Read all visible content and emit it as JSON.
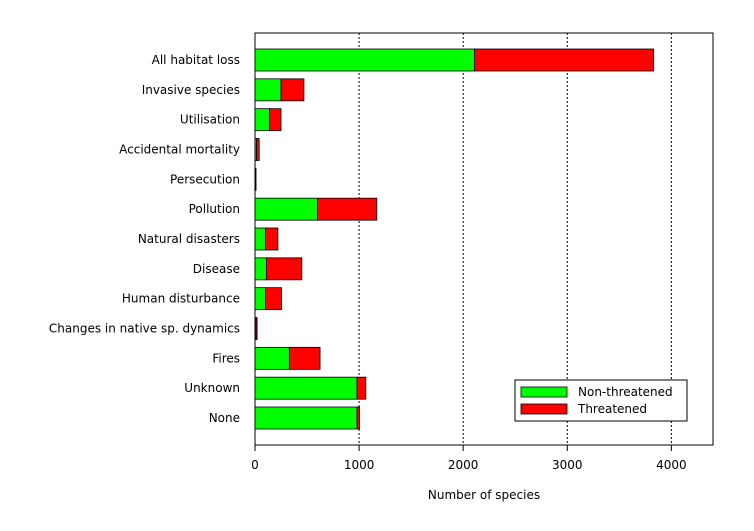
{
  "chart_data": {
    "type": "bar",
    "stacked": true,
    "orientation": "horizontal",
    "title": "",
    "xlabel": "Number of species",
    "ylabel": "",
    "xlim": [
      0,
      4400
    ],
    "xticks": [
      0,
      1000,
      2000,
      3000,
      4000
    ],
    "grid": "vertical dotted at x ticks",
    "legend_position": "bottom-right",
    "categories": [
      "All habitat loss",
      "Invasive species",
      "Utilisation",
      "Accidental mortality",
      "Persecution",
      "Pollution",
      "Natural disasters",
      "Disease",
      "Human disturbance",
      "Changes in native sp. dynamics",
      "Fires",
      "Unknown",
      "None"
    ],
    "series": [
      {
        "name": "Non-threatened",
        "color": "#00ff00",
        "values": [
          2110,
          250,
          140,
          15,
          5,
          600,
          100,
          110,
          100,
          10,
          330,
          980,
          980
        ]
      },
      {
        "name": "Threatened",
        "color": "#ff0000",
        "values": [
          1720,
          220,
          110,
          25,
          5,
          570,
          120,
          340,
          155,
          10,
          295,
          85,
          25
        ]
      }
    ]
  }
}
